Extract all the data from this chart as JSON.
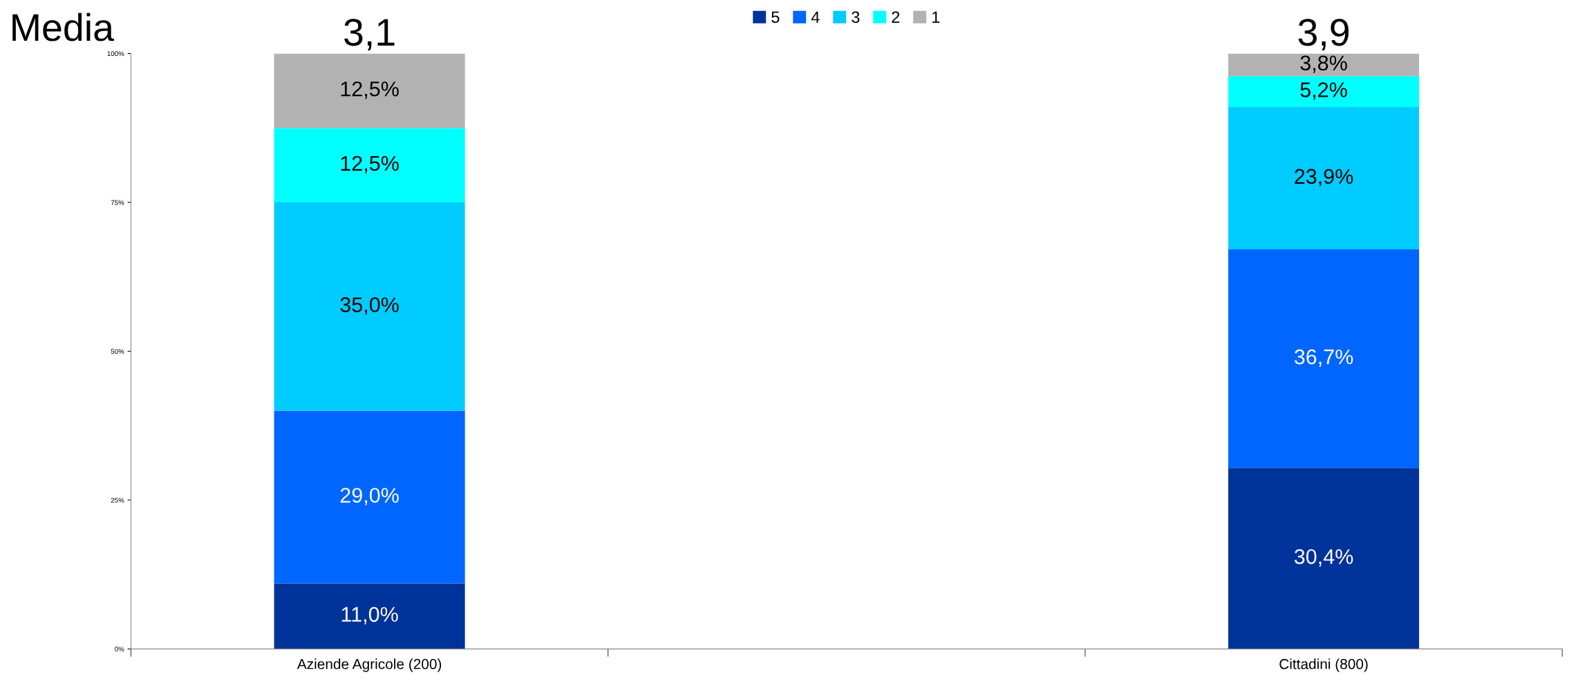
{
  "chart_data": {
    "type": "bar",
    "stacked": true,
    "categories": [
      "Aziende Agricole (200)",
      null,
      "Cittadini (800)"
    ],
    "series": [
      {
        "name": "5",
        "color": "#003399",
        "values": [
          11.0,
          null,
          30.4
        ],
        "value_labels": [
          "11,0%",
          null,
          "30,4%"
        ]
      },
      {
        "name": "4",
        "color": "#0066ff",
        "values": [
          29.0,
          null,
          36.7
        ],
        "value_labels": [
          "29,0%",
          null,
          "36,7%"
        ]
      },
      {
        "name": "3",
        "color": "#00ccff",
        "values": [
          35.0,
          null,
          23.9
        ],
        "value_labels": [
          "35,0%",
          null,
          "23,9%"
        ]
      },
      {
        "name": "2",
        "color": "#00ffff",
        "values": [
          12.5,
          null,
          5.2
        ],
        "value_labels": [
          "12,5%",
          null,
          "5,2%"
        ]
      },
      {
        "name": "1",
        "color": "#b2b2b2",
        "values": [
          12.5,
          null,
          3.8
        ],
        "value_labels": [
          "12,5%",
          null,
          "3,8%"
        ]
      }
    ],
    "ylim": [
      0,
      100
    ],
    "yticks": [
      {
        "value": 0,
        "label": "0%"
      },
      {
        "value": 25,
        "label": "25%"
      },
      {
        "value": 50,
        "label": "50%"
      },
      {
        "value": 75,
        "label": "75%"
      },
      {
        "value": 100,
        "label": "100%"
      }
    ],
    "grid": false,
    "legend": "top",
    "annotations": [
      "Media",
      "3,1",
      "3,9"
    ]
  }
}
